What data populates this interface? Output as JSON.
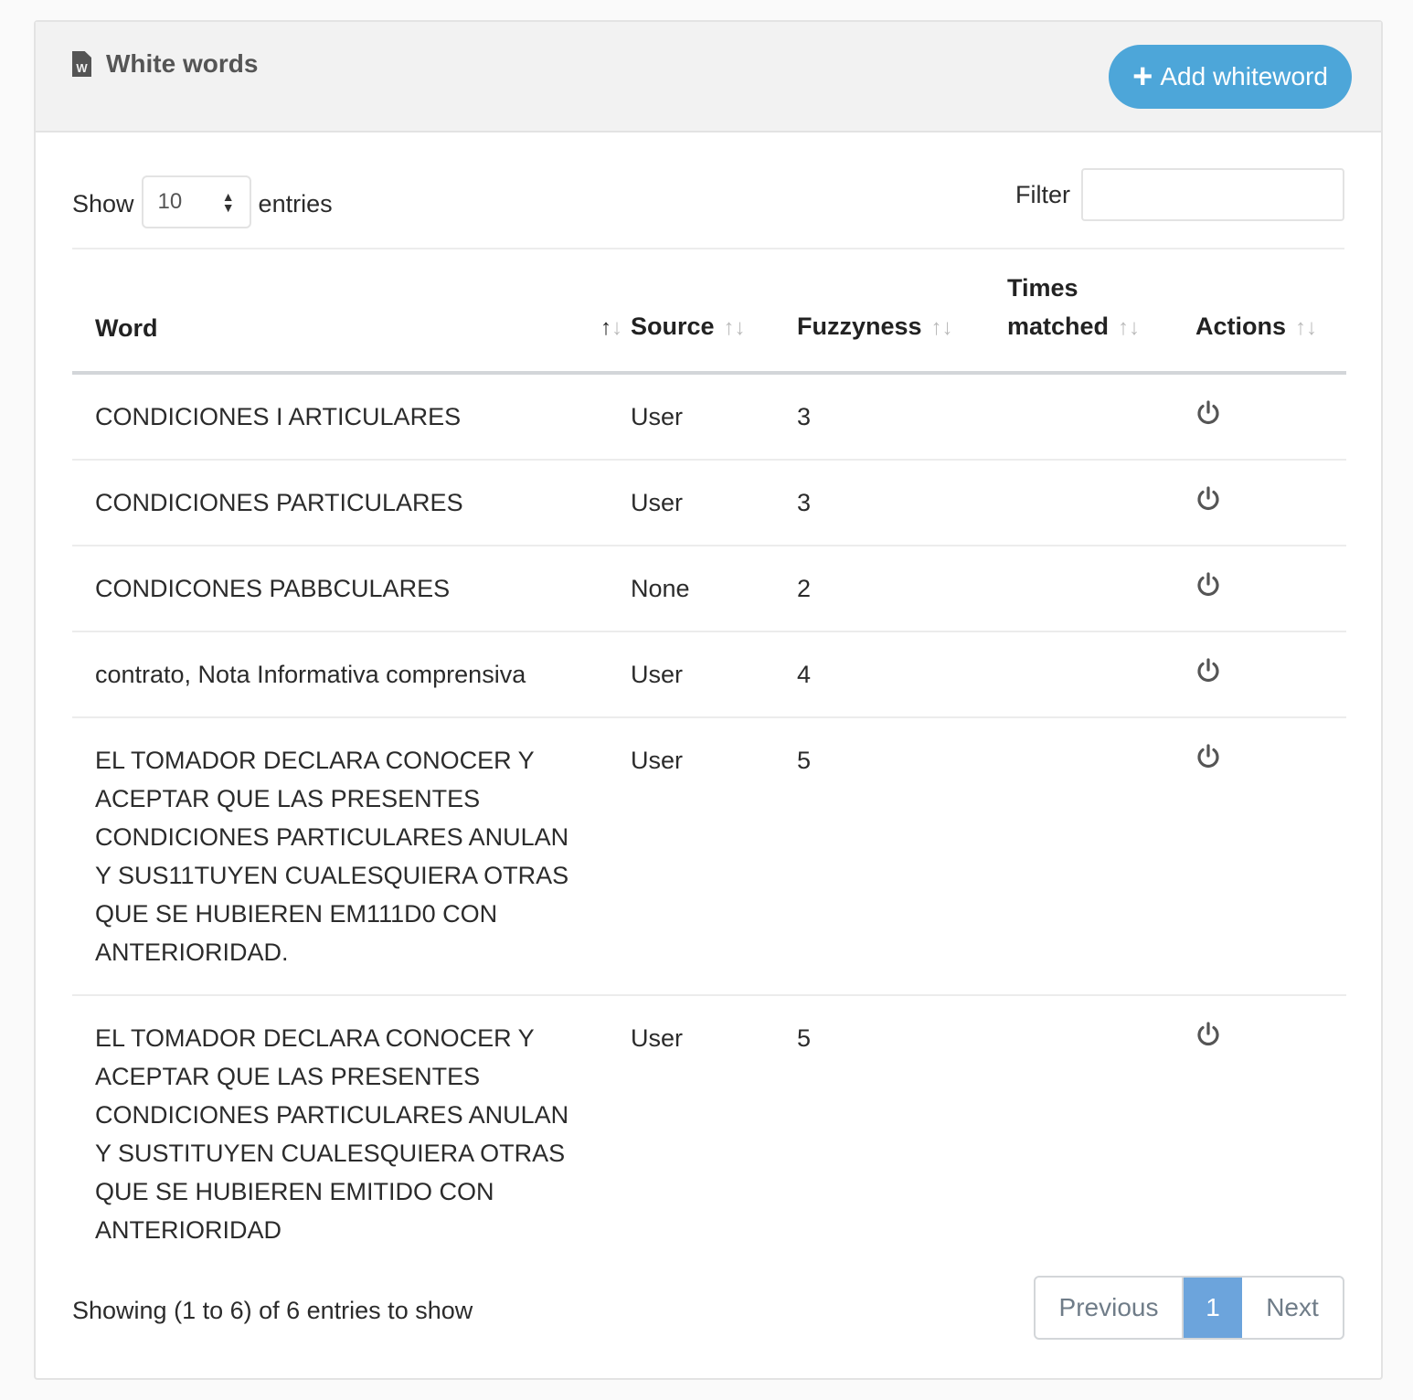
{
  "header": {
    "title": "White words",
    "icon_letter": "W",
    "add_label": "Add whiteword"
  },
  "controls": {
    "show_label": "Show",
    "page_size": "10",
    "entries_label": "entries",
    "filter_label": "Filter",
    "filter_value": ""
  },
  "table": {
    "columns": [
      "Word",
      "Source",
      "Fuzzyness",
      "Times matched",
      "Actions"
    ],
    "columns_split": {
      "times_1": "Times",
      "times_2": "matched"
    },
    "rows": [
      {
        "word": "CONDICIONES I ARTICULARES",
        "source": "User",
        "fuzzyness": "3",
        "times": ""
      },
      {
        "word": "CONDICIONES PARTICULARES",
        "source": "User",
        "fuzzyness": "3",
        "times": ""
      },
      {
        "word": "CONDICONES PABBCULARES",
        "source": "None",
        "fuzzyness": "2",
        "times": ""
      },
      {
        "word": "contrato, Nota Informativa comprensiva",
        "source": "User",
        "fuzzyness": "4",
        "times": ""
      },
      {
        "word": "EL TOMADOR DECLARA CONOCER Y ACEPTAR QUE LAS PRESENTES CONDICIONES PARTICULARES ANULAN Y SUS11TUYEN CUALESQUIERA OTRAS QUE SE HUBIEREN EM111D0 CON ANTERIORIDAD.",
        "source": "User",
        "fuzzyness": "5",
        "times": ""
      },
      {
        "word": "EL TOMADOR DECLARA CONOCER Y ACEPTAR QUE LAS PRESENTES CONDICIONES PARTICULARES ANULAN Y SUSTITUYEN CUALESQUIERA OTRAS QUE SE HUBIEREN EMITIDO CON ANTERIORIDAD",
        "source": "User",
        "fuzzyness": "5",
        "times": ""
      }
    ]
  },
  "footer": {
    "info": "Showing (1 to 6) of 6 entries to show",
    "previous": "Previous",
    "current_page": "1",
    "next": "Next"
  },
  "colors": {
    "accent": "#4da6d9",
    "active_page": "#6ca4dc"
  }
}
